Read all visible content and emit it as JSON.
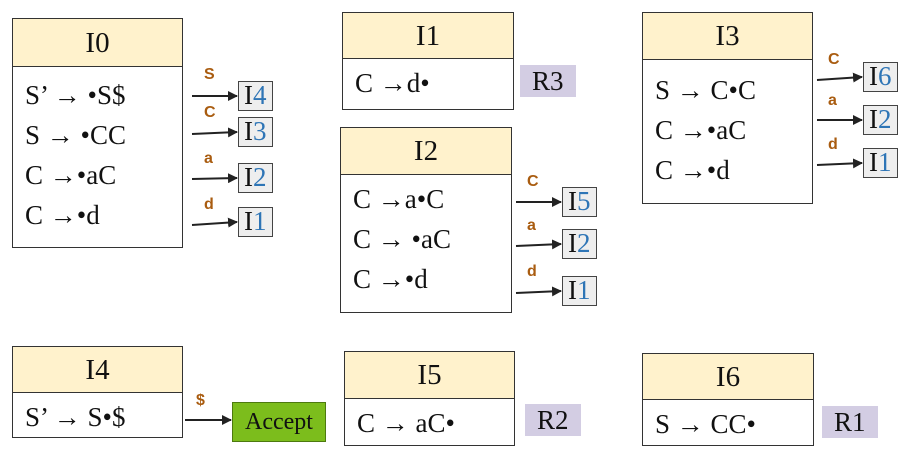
{
  "states": [
    {
      "id": "I0",
      "items": [
        "S’ → •S$",
        "S → •CC",
        "C →•aC",
        "C →•d"
      ]
    },
    {
      "id": "I1",
      "items": [
        "C →d•"
      ]
    },
    {
      "id": "I2",
      "items": [
        "C →a•C",
        "C →  •aC",
        "C →•d"
      ]
    },
    {
      "id": "I3",
      "items": [
        "S → C•C",
        "C →•aC",
        "C →•d"
      ]
    },
    {
      "id": "I4",
      "items": [
        "S’ → S•$"
      ]
    },
    {
      "id": "I5",
      "items": [
        "C → aC•"
      ]
    },
    {
      "id": "I6",
      "items": [
        "S → CC•"
      ]
    }
  ],
  "transitions": {
    "I0": [
      {
        "symbol": "S",
        "prefix": "I",
        "num": "4"
      },
      {
        "symbol": "C",
        "prefix": "I",
        "num": "3"
      },
      {
        "symbol": "a",
        "prefix": "I",
        "num": "2"
      },
      {
        "symbol": "d",
        "prefix": "I",
        "num": "1"
      }
    ],
    "I2": [
      {
        "symbol": "C",
        "prefix": "I",
        "num": "5"
      },
      {
        "symbol": "a",
        "prefix": "I",
        "num": "2"
      },
      {
        "symbol": "d",
        "prefix": "I",
        "num": "1"
      }
    ],
    "I3": [
      {
        "symbol": "C",
        "prefix": "I",
        "num": "6"
      },
      {
        "symbol": "a",
        "prefix": "I",
        "num": "2"
      },
      {
        "symbol": "d",
        "prefix": "I",
        "num": "1"
      }
    ],
    "I4": [
      {
        "symbol": "$"
      }
    ]
  },
  "reductions": {
    "I1": "R3",
    "I5": "R2",
    "I6": "R1"
  },
  "accept_label": "Accept",
  "colors": {
    "header": "#fff2cc",
    "target_num": "#2e75b6",
    "reduce_bg": "#d3cde3",
    "accept_bg": "#7cbd1c",
    "symbol": "#a95c10"
  }
}
